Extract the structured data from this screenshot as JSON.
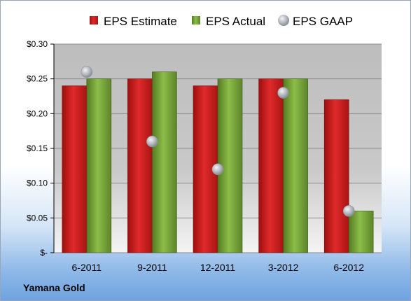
{
  "company": "Yamana Gold",
  "colors": {
    "estimate": "#d42020",
    "actual": "#78a83a",
    "gaap": "#a9aeb6"
  },
  "chart_data": {
    "type": "bar",
    "categories": [
      "6-2011",
      "9-2011",
      "12-2011",
      "3-2012",
      "6-2012"
    ],
    "series": [
      {
        "name": "EPS Estimate",
        "values": [
          0.24,
          0.25,
          0.24,
          0.25,
          0.22
        ]
      },
      {
        "name": "EPS Actual",
        "values": [
          0.25,
          0.26,
          0.25,
          0.25,
          0.06
        ]
      },
      {
        "name": "EPS GAAP",
        "kind": "scatter",
        "values": [
          0.26,
          0.16,
          0.12,
          0.23,
          0.06
        ]
      }
    ],
    "ylim": [
      0,
      0.3
    ],
    "y_ticks": [
      0,
      0.05,
      0.1,
      0.15,
      0.2,
      0.25,
      0.3
    ],
    "y_tick_labels": [
      "$-",
      "$0.05",
      "$0.10",
      "$0.15",
      "$0.20",
      "$0.25",
      "$0.30"
    ],
    "grid": true,
    "legend_position": "top"
  }
}
